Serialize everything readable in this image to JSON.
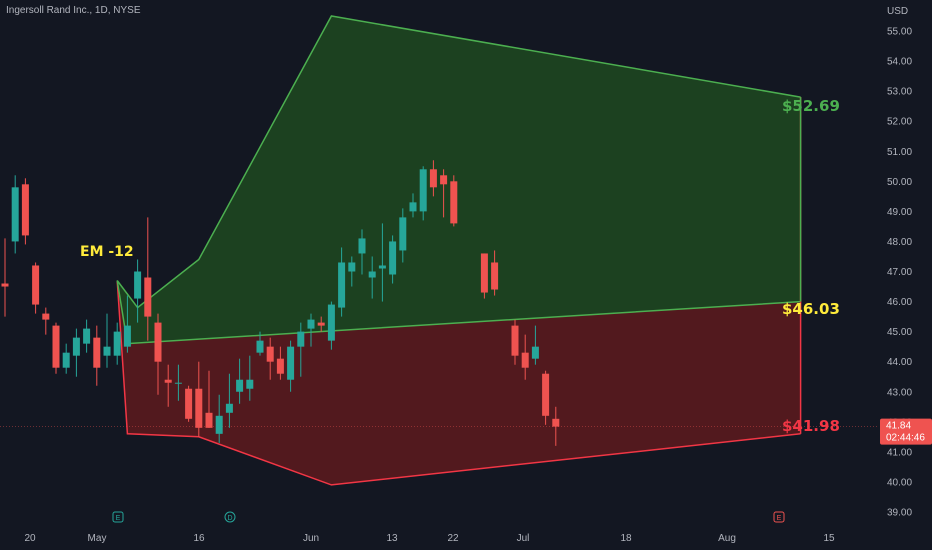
{
  "header": {
    "ticker": "Ingersoll Rand Inc., 1D, NYSE"
  },
  "axis": {
    "currency": "USD"
  },
  "colors": {
    "bg": "#131722",
    "up": "#26a69a",
    "down": "#ef5350",
    "green_fill": "#1e4620",
    "green_line": "#4caf50",
    "red_fill": "#5a1a1e",
    "red_line": "#f23645",
    "yellow": "#ffeb3b",
    "grid_text": "#b2b5be"
  },
  "chart_data": {
    "type": "candlestick",
    "ylim": [
      38.6,
      55.8
    ],
    "y_ticks": [
      "55.00",
      "54.00",
      "53.00",
      "52.00",
      "51.00",
      "50.00",
      "49.00",
      "48.00",
      "47.00",
      "46.00",
      "45.00",
      "44.00",
      "43.00",
      "42.00",
      "41.00",
      "40.00",
      "39.00"
    ],
    "x_ticks": [
      "20",
      "May",
      "16",
      "Jun",
      "13",
      "22",
      "Jul",
      "18",
      "Aug",
      "15"
    ],
    "candles": [
      [
        0,
        46.6,
        46.5,
        48.1,
        45.5
      ],
      [
        1,
        48.0,
        49.8,
        50.2,
        47.6
      ],
      [
        2,
        49.9,
        48.2,
        50.1,
        47.9
      ],
      [
        3,
        47.2,
        45.9,
        47.3,
        45.6
      ],
      [
        4,
        45.6,
        45.4,
        45.8,
        44.9
      ],
      [
        5,
        45.2,
        43.8,
        45.3,
        43.6
      ],
      [
        6,
        43.8,
        44.3,
        44.6,
        43.6
      ],
      [
        7,
        44.2,
        44.8,
        45.1,
        43.5
      ],
      [
        8,
        44.6,
        45.1,
        45.4,
        44.3
      ],
      [
        9,
        44.8,
        43.8,
        45.2,
        43.2
      ],
      [
        10,
        44.2,
        44.5,
        45.6,
        43.8
      ],
      [
        11,
        44.2,
        45.0,
        45.3,
        43.9
      ],
      [
        12,
        44.5,
        45.2,
        46.2,
        44.3
      ],
      [
        13,
        46.1,
        47.0,
        47.4,
        45.3
      ],
      [
        14,
        46.8,
        45.5,
        48.8,
        44.7
      ],
      [
        15,
        45.3,
        44.0,
        45.6,
        42.9
      ],
      [
        16,
        43.4,
        43.3,
        43.9,
        42.5
      ],
      [
        17,
        43.3,
        43.3,
        43.9,
        42.7
      ],
      [
        18,
        43.1,
        42.1,
        43.2,
        42.0
      ],
      [
        19,
        43.1,
        41.8,
        44.0,
        41.5
      ],
      [
        20,
        42.3,
        41.8,
        43.7,
        41.8
      ],
      [
        21,
        41.6,
        42.2,
        42.9,
        41.3
      ],
      [
        22,
        42.3,
        42.6,
        43.6,
        41.8
      ],
      [
        23,
        43.0,
        43.4,
        44.1,
        42.6
      ],
      [
        24,
        43.1,
        43.4,
        44.2,
        42.7
      ],
      [
        25,
        44.3,
        44.7,
        45.0,
        44.2
      ],
      [
        26,
        44.5,
        44.0,
        44.8,
        43.4
      ],
      [
        27,
        44.1,
        43.6,
        44.5,
        43.4
      ],
      [
        28,
        43.4,
        44.5,
        44.7,
        43.0
      ],
      [
        29,
        44.5,
        45.0,
        45.3,
        43.5
      ],
      [
        30,
        45.1,
        45.4,
        45.6,
        44.5
      ],
      [
        31,
        45.3,
        45.2,
        45.5,
        45.0
      ],
      [
        32,
        44.7,
        45.9,
        46.0,
        44.4
      ],
      [
        33,
        45.8,
        47.3,
        47.8,
        45.5
      ],
      [
        34,
        47.0,
        47.3,
        47.5,
        46.5
      ],
      [
        35,
        47.6,
        48.1,
        48.4,
        46.9
      ],
      [
        36,
        46.8,
        47.0,
        47.5,
        46.1
      ],
      [
        37,
        47.1,
        47.2,
        48.6,
        46.0
      ],
      [
        38,
        46.9,
        48.0,
        48.2,
        46.6
      ],
      [
        39,
        47.7,
        48.8,
        49.1,
        47.3
      ],
      [
        40,
        49.0,
        49.3,
        49.6,
        48.8
      ],
      [
        41,
        49.0,
        50.4,
        50.5,
        48.7
      ],
      [
        42,
        50.4,
        49.8,
        50.7,
        49.5
      ],
      [
        43,
        50.2,
        49.9,
        50.4,
        48.8
      ],
      [
        44,
        50.0,
        48.6,
        50.2,
        48.5
      ],
      [
        47,
        47.6,
        46.3,
        47.6,
        46.1
      ],
      [
        48,
        47.3,
        46.4,
        47.7,
        46.2
      ],
      [
        50,
        45.2,
        44.2,
        45.4,
        43.9
      ],
      [
        51,
        44.3,
        43.8,
        44.9,
        43.4
      ],
      [
        52,
        44.1,
        44.5,
        45.2,
        43.9
      ],
      [
        53,
        43.6,
        42.2,
        43.7,
        41.9
      ],
      [
        54,
        42.1,
        41.84,
        42.5,
        41.2
      ]
    ],
    "zone_upper": [
      [
        11,
        46.7
      ],
      [
        13,
        45.8
      ],
      [
        19,
        47.4
      ],
      [
        32,
        55.5
      ],
      [
        78,
        52.8
      ]
    ],
    "zone_mid": [
      [
        11,
        46.7
      ],
      [
        12,
        44.6
      ],
      [
        78,
        46.0
      ]
    ],
    "zone_lower": [
      [
        11,
        46.7
      ],
      [
        12,
        41.6
      ],
      [
        19,
        41.5
      ],
      [
        32,
        39.9
      ],
      [
        78,
        41.6
      ]
    ],
    "annotations": {
      "em": "EM -12",
      "upper_target": "$52.69",
      "mid_target": "$46.03",
      "lower_target": "$41.98"
    },
    "last_price": "41.84",
    "countdown": "02:44:46"
  }
}
